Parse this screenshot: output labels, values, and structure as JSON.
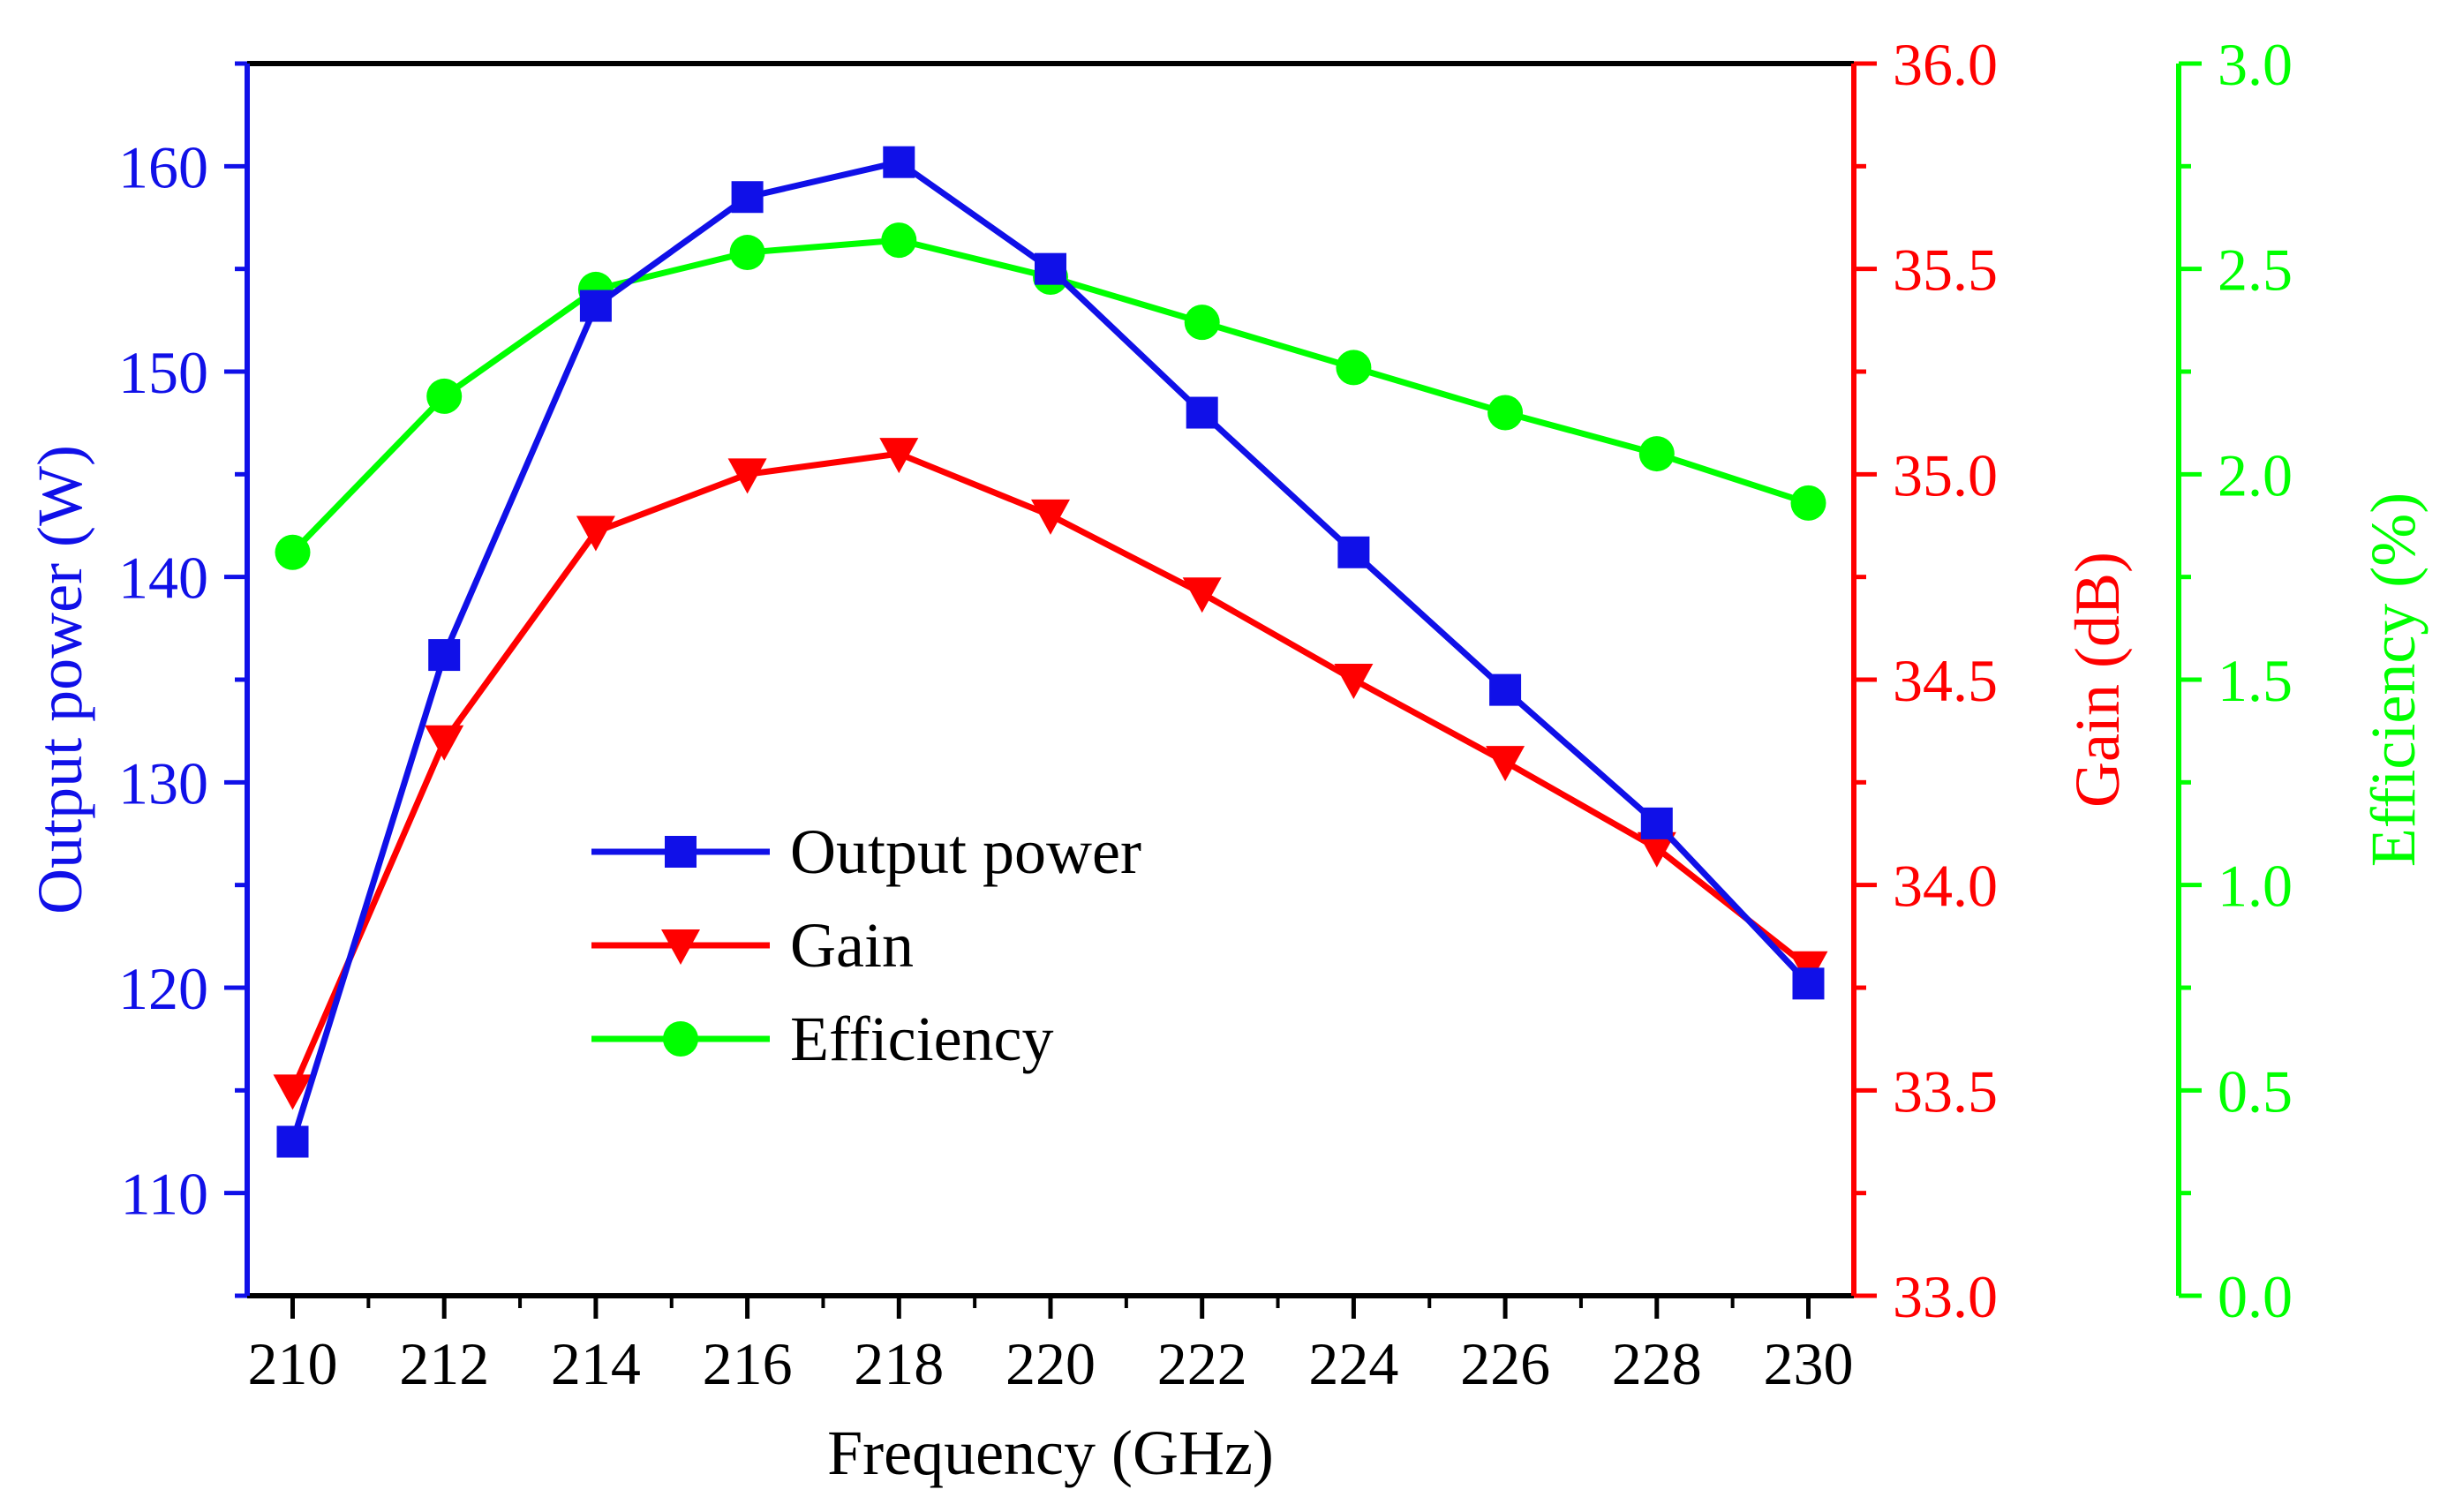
{
  "chart_data": {
    "type": "line",
    "title": "",
    "xlabel": "Frequency (GHz)",
    "x": [
      210,
      212,
      214,
      216,
      218,
      220,
      222,
      224,
      226,
      228,
      230
    ],
    "xlim": [
      209.4,
      230.6
    ],
    "x_ticks": [
      210,
      212,
      214,
      216,
      218,
      220,
      222,
      224,
      226,
      228,
      230
    ],
    "axes": [
      {
        "id": "power",
        "label": "Output power (W)",
        "color": "#1010e8",
        "lim": [
          105,
          165
        ],
        "ticks": [
          110,
          120,
          130,
          140,
          150,
          160
        ],
        "tick_labels": [
          "110",
          "120",
          "130",
          "140",
          "150",
          "160"
        ]
      },
      {
        "id": "gain",
        "label": "Gain (dB)",
        "color": "#ff0000",
        "lim": [
          33.0,
          36.0
        ],
        "ticks": [
          33.0,
          33.5,
          34.0,
          34.5,
          35.0,
          35.5,
          36.0
        ],
        "tick_labels": [
          "33.0",
          "33.5",
          "34.0",
          "34.5",
          "35.0",
          "35.5",
          "36.0"
        ]
      },
      {
        "id": "efficiency",
        "label": "Efficiency (%)",
        "color": "#00ff00",
        "lim": [
          0.0,
          3.0
        ],
        "ticks": [
          0.0,
          0.5,
          1.0,
          1.5,
          2.0,
          2.5,
          3.0
        ],
        "tick_labels": [
          "0.0",
          "0.5",
          "1.0",
          "1.5",
          "2.0",
          "2.5",
          "3.0"
        ]
      }
    ],
    "series": [
      {
        "name": "Output power",
        "axis": "power",
        "marker": "square",
        "color": "#1010e8",
        "values": [
          112.5,
          136.2,
          153.2,
          158.5,
          160.2,
          155.0,
          148.0,
          141.2,
          134.5,
          128.0,
          120.2
        ]
      },
      {
        "name": "Gain",
        "axis": "gain",
        "marker": "triangle-down",
        "color": "#ff0000",
        "values": [
          33.5,
          34.35,
          34.86,
          35.0,
          35.05,
          34.9,
          34.71,
          34.5,
          34.3,
          34.09,
          33.8
        ]
      },
      {
        "name": "Efficiency",
        "axis": "efficiency",
        "marker": "circle",
        "color": "#00ff00",
        "values": [
          1.81,
          2.19,
          2.45,
          2.54,
          2.57,
          2.48,
          2.37,
          2.26,
          2.15,
          2.05,
          1.93
        ]
      }
    ],
    "legend": {
      "position": "center-left",
      "entries": [
        "Output power",
        "Gain",
        "Efficiency"
      ]
    }
  }
}
